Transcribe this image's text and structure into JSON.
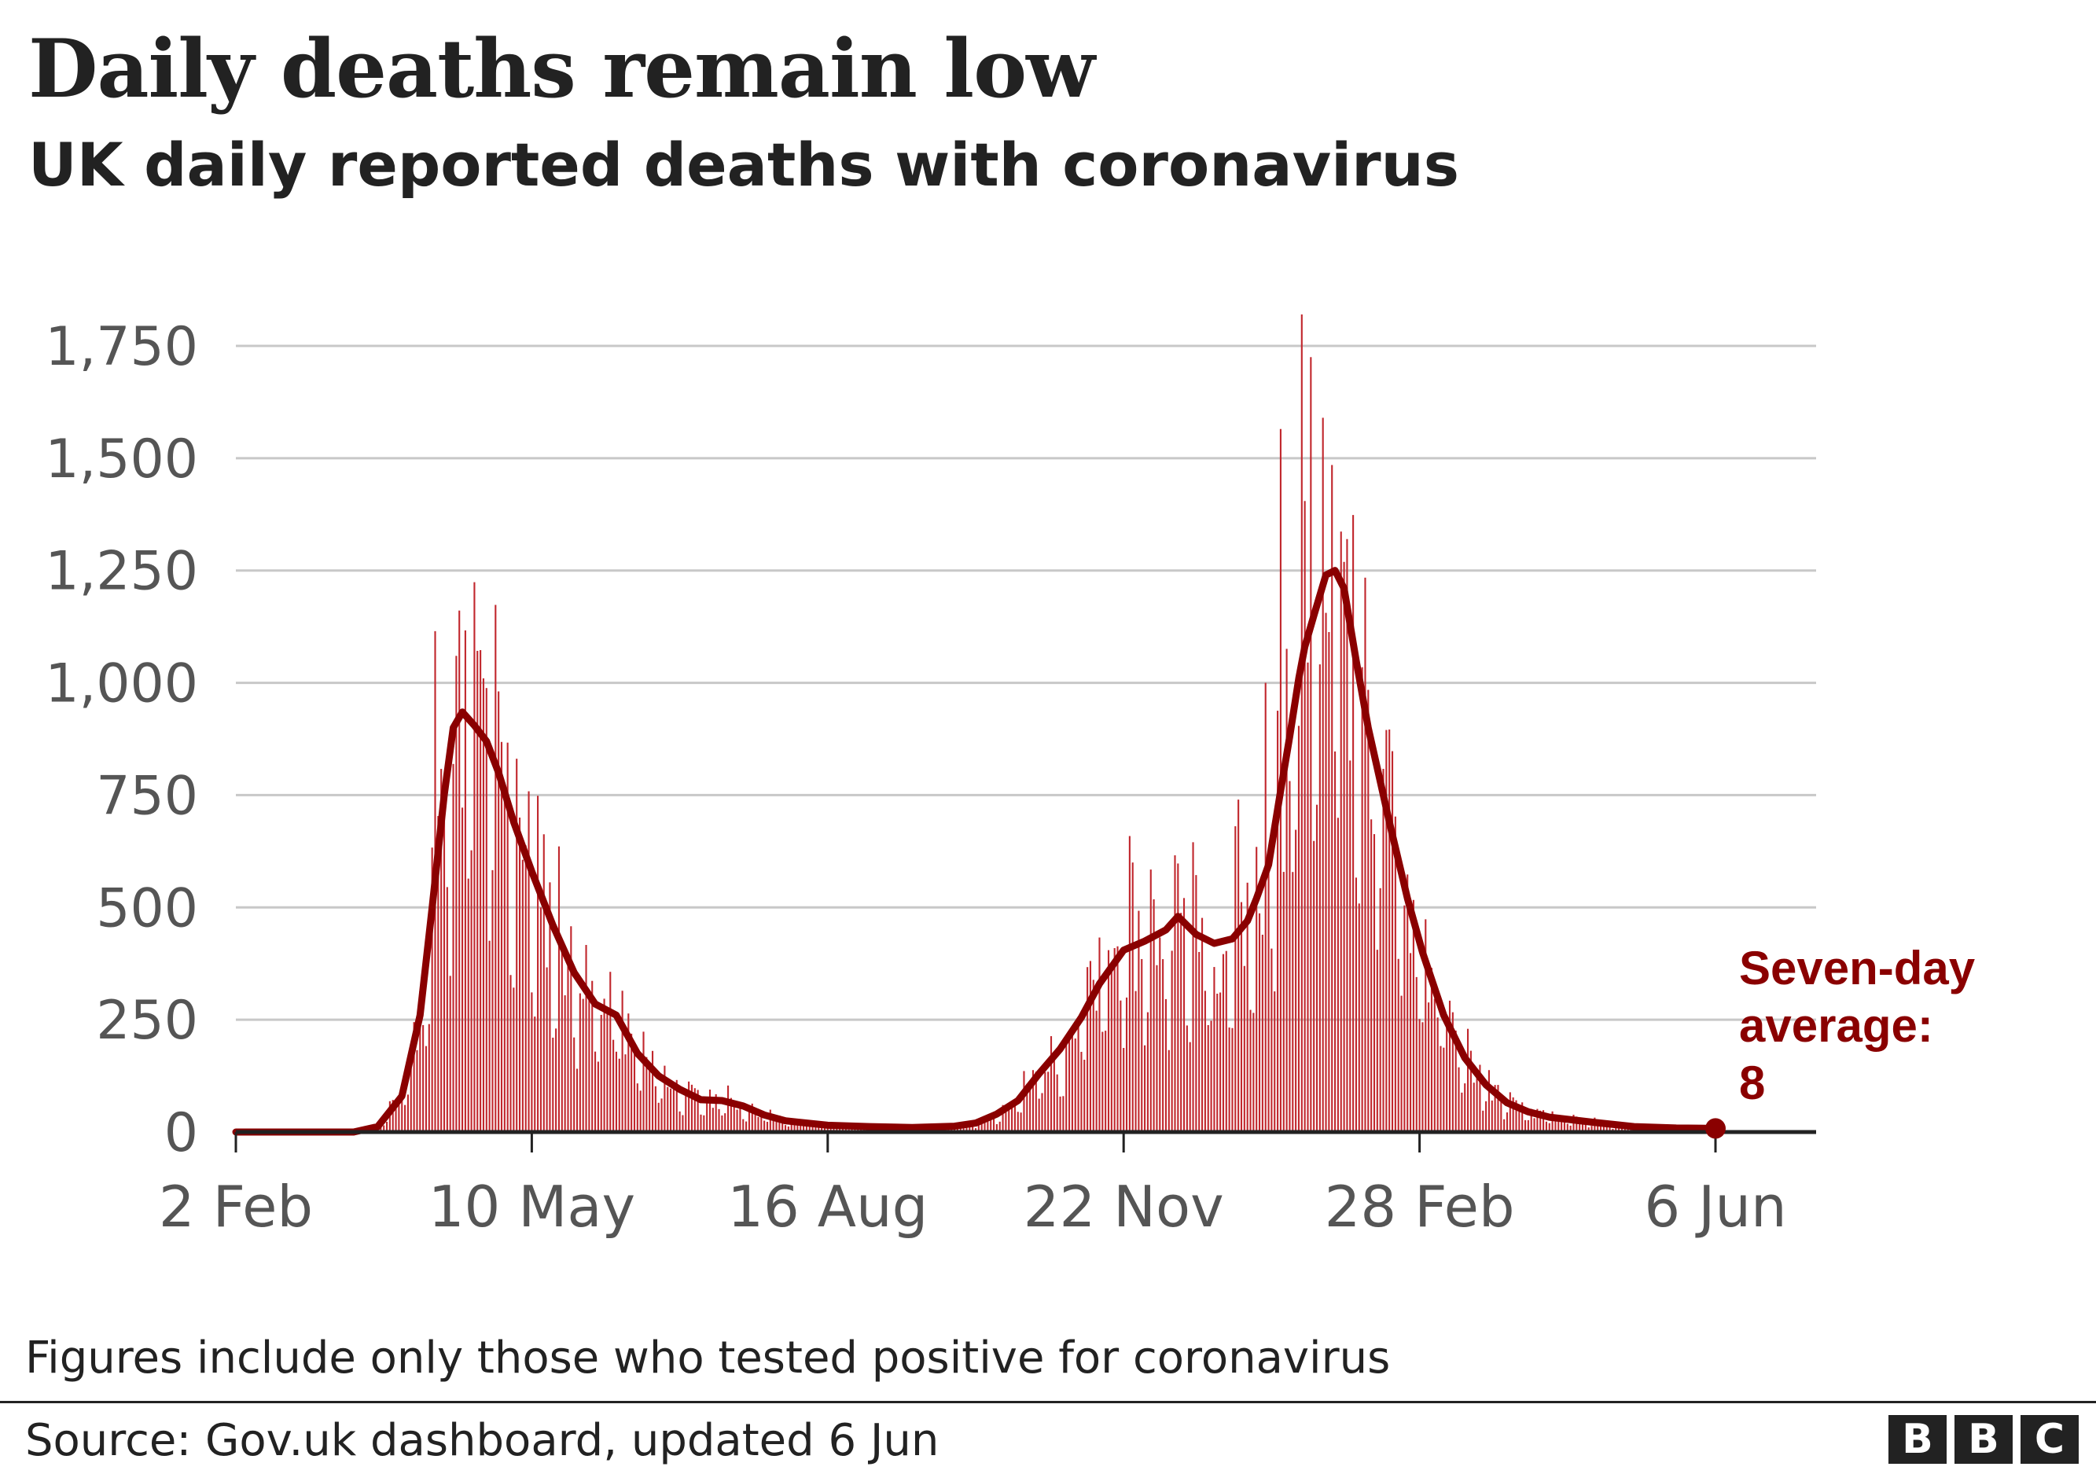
{
  "header": {
    "title": "Daily deaths remain low",
    "subtitle": "UK daily reported deaths with coronavirus"
  },
  "footer": {
    "note": "Figures include only those who tested positive for coronavirus",
    "source": "Source: Gov.uk dashboard, updated 6 Jun",
    "logo_letters": [
      "B",
      "B",
      "C"
    ]
  },
  "colors": {
    "bars": "#c1272d",
    "line": "#8a0000",
    "annotation": "#8a0000",
    "grid": "#c8c8c8",
    "axis": "#222222",
    "tick_text": "#555555"
  },
  "chart_data": {
    "type": "bar",
    "title": "Daily deaths remain low",
    "subtitle": "UK daily reported deaths with coronavirus",
    "xlabel": "",
    "ylabel": "",
    "x_range": [
      "2020-02-02",
      "2021-06-06"
    ],
    "ylim": [
      0,
      1750
    ],
    "grid": true,
    "y_ticks": [
      0,
      250,
      500,
      750,
      1000,
      1250,
      1500,
      1750
    ],
    "y_tick_labels": [
      "0",
      "250",
      "500",
      "750",
      "1,000",
      "1,250",
      "1,500",
      "1,750"
    ],
    "x_ticks": [
      "2020-02-02",
      "2020-05-10",
      "2020-08-16",
      "2020-11-22",
      "2021-02-28",
      "2021-06-06"
    ],
    "x_tick_labels": [
      "2 Feb",
      "10 May",
      "16 Aug",
      "22 Nov",
      "28 Feb",
      "6 Jun"
    ],
    "series": [
      {
        "kind": "bar",
        "description": "daily reported deaths (approximate)"
      },
      {
        "name": "Seven-day average",
        "kind": "line",
        "points": [
          [
            "2020-02-02",
            0
          ],
          [
            "2020-03-12",
            0
          ],
          [
            "2020-03-20",
            12
          ],
          [
            "2020-03-28",
            80
          ],
          [
            "2020-04-03",
            260
          ],
          [
            "2020-04-07",
            500
          ],
          [
            "2020-04-11",
            750
          ],
          [
            "2020-04-14",
            900
          ],
          [
            "2020-04-17",
            935
          ],
          [
            "2020-04-21",
            905
          ],
          [
            "2020-04-25",
            870
          ],
          [
            "2020-04-29",
            800
          ],
          [
            "2020-05-04",
            690
          ],
          [
            "2020-05-10",
            580
          ],
          [
            "2020-05-17",
            460
          ],
          [
            "2020-05-24",
            355
          ],
          [
            "2020-05-31",
            285
          ],
          [
            "2020-06-07",
            260
          ],
          [
            "2020-06-14",
            175
          ],
          [
            "2020-06-21",
            125
          ],
          [
            "2020-06-28",
            95
          ],
          [
            "2020-07-05",
            72
          ],
          [
            "2020-07-12",
            70
          ],
          [
            "2020-07-19",
            58
          ],
          [
            "2020-07-26",
            38
          ],
          [
            "2020-08-02",
            25
          ],
          [
            "2020-08-16",
            15
          ],
          [
            "2020-08-30",
            12
          ],
          [
            "2020-09-13",
            10
          ],
          [
            "2020-09-27",
            13
          ],
          [
            "2020-10-04",
            20
          ],
          [
            "2020-10-11",
            40
          ],
          [
            "2020-10-18",
            70
          ],
          [
            "2020-10-25",
            130
          ],
          [
            "2020-11-01",
            185
          ],
          [
            "2020-11-08",
            255
          ],
          [
            "2020-11-14",
            330
          ],
          [
            "2020-11-22",
            405
          ],
          [
            "2020-11-29",
            425
          ],
          [
            "2020-12-06",
            450
          ],
          [
            "2020-12-10",
            480
          ],
          [
            "2020-12-16",
            440
          ],
          [
            "2020-12-22",
            420
          ],
          [
            "2020-12-28",
            430
          ],
          [
            "2021-01-02",
            470
          ],
          [
            "2021-01-05",
            520
          ],
          [
            "2021-01-09",
            595
          ],
          [
            "2021-01-13",
            760
          ],
          [
            "2021-01-16",
            880
          ],
          [
            "2021-01-19",
            1010
          ],
          [
            "2021-01-21",
            1080
          ],
          [
            "2021-01-24",
            1150
          ],
          [
            "2021-01-28",
            1240
          ],
          [
            "2021-01-31",
            1250
          ],
          [
            "2021-02-03",
            1210
          ],
          [
            "2021-02-07",
            1050
          ],
          [
            "2021-02-11",
            900
          ],
          [
            "2021-02-18",
            690
          ],
          [
            "2021-02-24",
            520
          ],
          [
            "2021-03-01",
            400
          ],
          [
            "2021-03-08",
            260
          ],
          [
            "2021-03-15",
            165
          ],
          [
            "2021-03-22",
            105
          ],
          [
            "2021-03-29",
            65
          ],
          [
            "2021-04-05",
            45
          ],
          [
            "2021-04-12",
            33
          ],
          [
            "2021-04-26",
            22
          ],
          [
            "2021-05-10",
            12
          ],
          [
            "2021-05-24",
            9
          ],
          [
            "2021-06-06",
            8
          ]
        ]
      }
    ],
    "bar_peaks": [
      [
        "2020-04-08",
        1115
      ],
      [
        "2020-04-15",
        1060
      ],
      [
        "2020-04-21",
        1224
      ],
      [
        "2020-04-24",
        1010
      ],
      [
        "2020-05-06",
        700
      ],
      [
        "2020-05-13",
        500
      ],
      [
        "2020-05-20",
        420
      ],
      [
        "2020-11-25",
        600
      ],
      [
        "2020-12-09",
        616
      ],
      [
        "2020-12-30",
        740
      ],
      [
        "2021-01-08",
        1000
      ],
      [
        "2021-01-13",
        1565
      ],
      [
        "2021-01-20",
        1820
      ],
      [
        "2021-01-23",
        1725
      ],
      [
        "2021-01-27",
        1590
      ],
      [
        "2021-02-04",
        1320
      ]
    ],
    "annotations": [
      {
        "lines": [
          "Seven-day",
          "average:",
          "8"
        ],
        "date": "2021-06-06",
        "value": 8
      }
    ]
  }
}
